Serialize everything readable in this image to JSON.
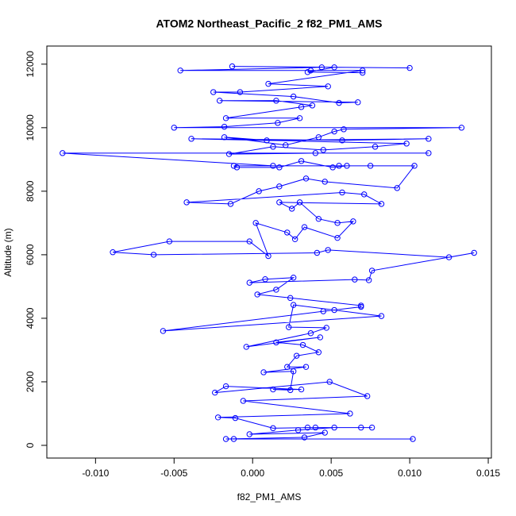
{
  "chart_data": {
    "type": "line",
    "title": "ATOM2 Northeast_Pacific_2 f82_PM1_AMS",
    "x_label": "f82_PM1_AMS",
    "y_label": "Altitude (m)",
    "xlim": [
      -0.0131,
      0.0152
    ],
    "ylim": [
      -400,
      12570
    ],
    "xticks": [
      {
        "value": -0.01,
        "label": "-0.010"
      },
      {
        "value": -0.005,
        "label": "-0.005"
      },
      {
        "value": 0,
        "label": "0.000"
      },
      {
        "value": 0.005,
        "label": "0.005"
      },
      {
        "value": 0.01,
        "label": "0.010"
      },
      {
        "value": 0.015,
        "label": "0.015"
      }
    ],
    "yticks": [
      0,
      2000,
      4000,
      6000,
      8000,
      10000,
      12000
    ],
    "x": [
      0.0102,
      -0.0012,
      -0.0017,
      0.0033,
      0.0046,
      -0.0002,
      0.0029,
      0.0052,
      0.0069,
      0.0076,
      0.004,
      0.0035,
      0.0013,
      -0.0011,
      -0.0022,
      0.0062,
      -0.0006,
      0.0073,
      0.0049,
      -0.0024,
      -0.0017,
      0.0031,
      0.0013,
      0.0024,
      0.0026,
      0.0007,
      0.0034,
      0.0022,
      0.0028,
      0.0042,
      0.0032,
      0.0015,
      0.0043,
      -0.0004,
      0.0037,
      0.0047,
      0.0023,
      0.0026,
      0.0082,
      -0.0057,
      0.0045,
      0.0052,
      0.0069,
      0.0069,
      0.0024,
      0.0003,
      0.0015,
      0.0026,
      0.0008,
      -0.0002,
      0.0065,
      0.0074,
      0.0076,
      0.0141,
      0.0125,
      0.0048,
      0.0041,
      -0.0063,
      -0.0089,
      -0.0053,
      -0.0002,
      0.001,
      0.0002,
      0.0022,
      0.0027,
      0.0033,
      0.0054,
      0.0064,
      0.0054,
      0.0042,
      0.003,
      0.0025,
      0.0017,
      0.0082,
      0.0071,
      0.0057,
      -0.0042,
      -0.0014,
      0.0004,
      0.0017,
      0.0034,
      0.0046,
      0.0092,
      0.0103,
      0.0055,
      -0.0012,
      -0.001,
      0.0017,
      0.0031,
      0.0051,
      0.006,
      0.0075,
      0.0013,
      -0.0121,
      0.0112,
      0.004,
      -0.0015,
      0.0013,
      0.0045,
      0.0078,
      0.0098,
      -0.0039,
      0.0057,
      0.0112,
      0.0009,
      -0.0018,
      0.0021,
      0.0042,
      0.0052,
      0.0058,
      0.0133,
      -0.005,
      -0.0018,
      0.0016,
      0.003,
      -0.0017,
      0.0031,
      0.0038,
      0.0015,
      -0.0021,
      0.0067,
      0.0055,
      0.0026,
      -0.0025,
      -0.0008,
      0.0048,
      0.001,
      0.007,
      0.0037,
      -0.0046,
      0.0044,
      -0.0013,
      0.01,
      0.0052,
      0.0035,
      0.007
    ],
    "series": [
      {
        "name": "f82_PM1_AMS",
        "color": "#0000ff",
        "values": [
          200,
          200,
          200,
          250,
          400,
          350,
          480,
          560,
          560,
          560,
          560,
          560,
          540,
          860,
          880,
          1000,
          1400,
          1550,
          2000,
          1660,
          1860,
          1760,
          1760,
          1740,
          2330,
          2300,
          2470,
          2470,
          2820,
          2930,
          3160,
          3240,
          3400,
          3100,
          3530,
          3700,
          3720,
          4420,
          4070,
          3600,
          4220,
          4260,
          4360,
          4400,
          4640,
          4750,
          4900,
          5280,
          5230,
          5120,
          5220,
          5200,
          5500,
          6060,
          5920,
          6150,
          6060,
          6000,
          6080,
          6420,
          6420,
          5960,
          7000,
          6700,
          6490,
          6870,
          6530,
          7050,
          7000,
          7130,
          7650,
          7450,
          7650,
          7600,
          7900,
          7960,
          7650,
          7600,
          8000,
          8150,
          8400,
          8300,
          8100,
          8800,
          8800,
          8800,
          8750,
          8750,
          8950,
          8750,
          8800,
          8800,
          8800,
          9200,
          9200,
          9200,
          9170,
          9400,
          9300,
          9400,
          9500,
          9650,
          9600,
          9650,
          9600,
          9700,
          9450,
          9700,
          9880,
          9950,
          10000,
          10000,
          10030,
          10150,
          10300,
          10300,
          10650,
          10700,
          10850,
          10850,
          10800,
          10780,
          10980,
          11120,
          11120,
          11300,
          11380,
          11800,
          11800,
          11800,
          11900,
          11930,
          11880,
          11900,
          11750,
          11730
        ]
      }
    ]
  }
}
